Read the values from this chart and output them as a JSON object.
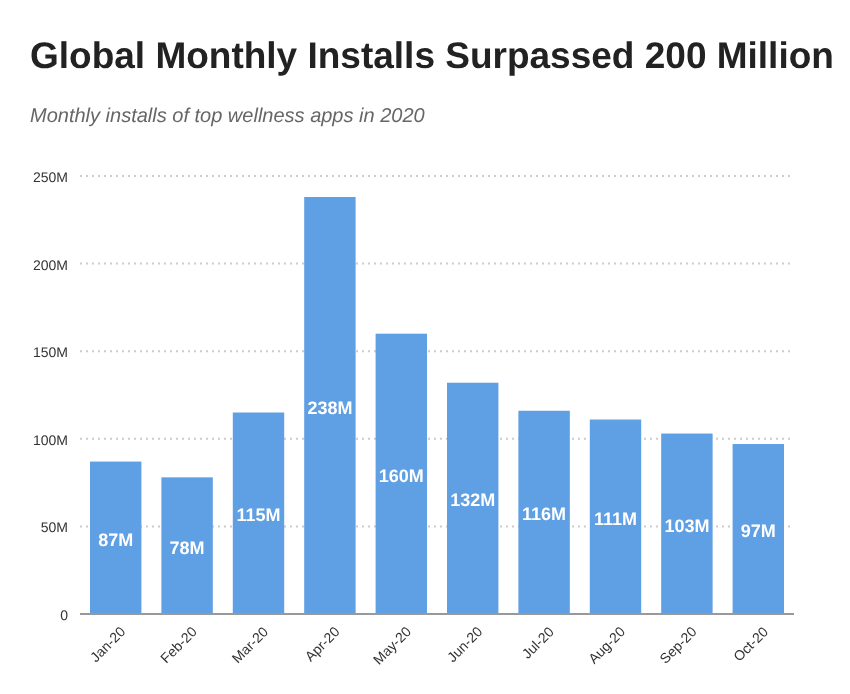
{
  "chart_data": {
    "type": "bar",
    "title": "Global Monthly Installs Surpassed 200 Million",
    "subtitle": "Monthly installs of top wellness apps in 2020",
    "categories": [
      "Jan-20",
      "Feb-20",
      "Mar-20",
      "Apr-20",
      "May-20",
      "Jun-20",
      "Jul-20",
      "Aug-20",
      "Sep-20",
      "Oct-20"
    ],
    "values": [
      87,
      78,
      115,
      238,
      160,
      132,
      116,
      111,
      103,
      97
    ],
    "value_labels": [
      "87M",
      "78M",
      "115M",
      "238M",
      "160M",
      "132M",
      "116M",
      "111M",
      "103M",
      "97M"
    ],
    "color": "#5f9fe3",
    "ylim": [
      0,
      250
    ],
    "yticks": [
      0,
      {
        "value": 50,
        "label": "50M"
      },
      {
        "value": 100,
        "label": "100M"
      },
      {
        "value": 150,
        "label": "150M"
      },
      {
        "value": 200,
        "label": "200M"
      },
      {
        "value": 250,
        "label": "250M"
      }
    ],
    "grid": "y"
  }
}
